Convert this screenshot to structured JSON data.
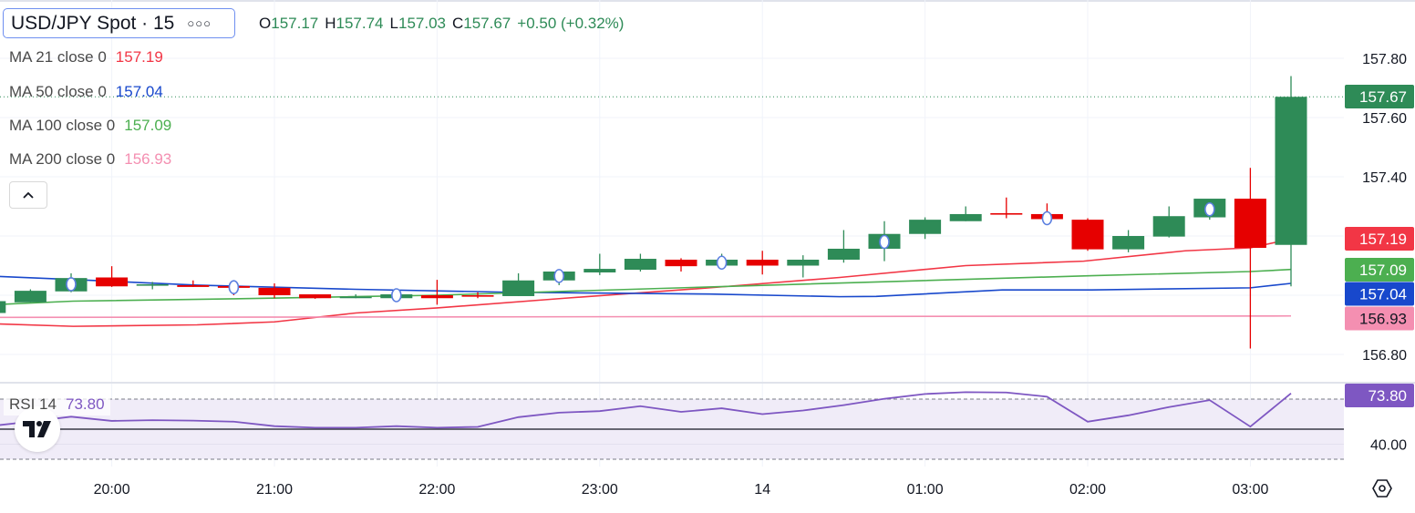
{
  "header": {
    "symbol": "USD/JPY Spot · 15",
    "more_icon": "ellipsis-icon",
    "ohlc": {
      "o_label": "O",
      "o": "157.17",
      "h_label": "H",
      "h": "157.74",
      "l_label": "L",
      "l": "157.03",
      "c_label": "C",
      "c": "157.67",
      "change": "+0.50 (+0.32%)"
    }
  },
  "indicators": [
    {
      "label": "MA 21 close 0",
      "value": "157.19",
      "color": "#f23645"
    },
    {
      "label": "MA 50 close 0",
      "value": "157.04",
      "color": "#1848cc"
    },
    {
      "label": "MA 100 close 0",
      "value": "157.09",
      "color": "#4caf50"
    },
    {
      "label": "MA 200 close 0",
      "value": "156.93",
      "color": "#f48fb1"
    }
  ],
  "collapse_icon": "chevron-up-icon",
  "rsi_legend": {
    "label": "RSI 14",
    "value": "73.80"
  },
  "colors": {
    "up": "#2e8b57",
    "down": "#e60000",
    "rsi": "#7e57c2",
    "marker": "#5b7fe0",
    "grid": "#f0f3fa"
  },
  "chart_data": {
    "type": "candlestick",
    "title": "USD/JPY Spot · 15",
    "interval_minutes": 15,
    "ylim": [
      156.8,
      157.8
    ],
    "y_ticks": [
      "157.80",
      "157.60",
      "157.40",
      "156.80"
    ],
    "x_ticks": [
      {
        "label": "20:00",
        "index": 3
      },
      {
        "label": "21:00",
        "index": 7
      },
      {
        "label": "22:00",
        "index": 11
      },
      {
        "label": "23:00",
        "index": 15
      },
      {
        "label": "14",
        "index": 19
      },
      {
        "label": "01:00",
        "index": 23
      },
      {
        "label": "02:00",
        "index": 27
      },
      {
        "label": "03:00",
        "index": 31
      }
    ],
    "candles_ohlc": [
      [
        156.94,
        156.99,
        156.93,
        156.98
      ],
      [
        156.976,
        157.02,
        156.976,
        157.015
      ],
      [
        157.013,
        157.074,
        157.01,
        157.058
      ],
      [
        157.06,
        157.098,
        157.028,
        157.03
      ],
      [
        157.032,
        157.045,
        157.02,
        157.037
      ],
      [
        157.034,
        157.05,
        157.028,
        157.028
      ],
      [
        157.031,
        157.045,
        157.0,
        157.025
      ],
      [
        157.025,
        157.04,
        156.99,
        157.0
      ],
      [
        157.003,
        157.003,
        156.988,
        156.99
      ],
      [
        156.99,
        157.003,
        156.99,
        156.995
      ],
      [
        156.99,
        157.005,
        156.99,
        157.003
      ],
      [
        157.0,
        157.052,
        156.968,
        156.99
      ],
      [
        157.0,
        157.01,
        156.99,
        156.995
      ],
      [
        156.997,
        157.074,
        156.997,
        157.05
      ],
      [
        157.05,
        157.08,
        157.034,
        157.08
      ],
      [
        157.077,
        157.14,
        157.068,
        157.089
      ],
      [
        157.086,
        157.14,
        157.08,
        157.123
      ],
      [
        157.12,
        157.125,
        157.08,
        157.098
      ],
      [
        157.1,
        157.14,
        157.095,
        157.12
      ],
      [
        157.12,
        157.15,
        157.07,
        157.1
      ],
      [
        157.1,
        157.135,
        157.06,
        157.12
      ],
      [
        157.12,
        157.22,
        157.11,
        157.157
      ],
      [
        157.157,
        157.25,
        157.115,
        157.207
      ],
      [
        157.207,
        157.263,
        157.19,
        157.255
      ],
      [
        157.25,
        157.3,
        157.25,
        157.274
      ],
      [
        157.277,
        157.33,
        157.26,
        157.275
      ],
      [
        157.274,
        157.31,
        157.257,
        157.257
      ],
      [
        157.255,
        157.26,
        157.15,
        157.155
      ],
      [
        157.155,
        157.22,
        157.145,
        157.2
      ],
      [
        157.198,
        157.3,
        157.195,
        157.267
      ],
      [
        157.263,
        157.31,
        157.255,
        157.326
      ],
      [
        157.326,
        157.43,
        156.82,
        157.16
      ],
      [
        157.17,
        157.74,
        157.03,
        157.67
      ]
    ],
    "markers": [
      [
        2,
        157.037
      ],
      [
        6,
        157.027
      ],
      [
        10,
        157.0
      ],
      [
        14,
        157.065
      ],
      [
        18,
        157.11
      ],
      [
        22,
        157.18
      ],
      [
        26,
        157.26
      ],
      [
        30,
        157.29
      ]
    ],
    "last_price": {
      "value": "157.67"
    },
    "moving_averages": [
      {
        "name": "MA 21",
        "color": "#f23645",
        "last": "157.19",
        "points": [
          [
            -0.25,
            156.905
          ],
          [
            2.05,
            156.895
          ],
          [
            5.1,
            156.9
          ],
          [
            7,
            156.91
          ],
          [
            9,
            156.94
          ],
          [
            11,
            156.957
          ],
          [
            14.15,
            156.99
          ],
          [
            17.7,
            157.025
          ],
          [
            20.9,
            157.06
          ],
          [
            24,
            157.1
          ],
          [
            26.9,
            157.115
          ],
          [
            29.4,
            157.15
          ],
          [
            31,
            157.16
          ],
          [
            32,
            157.19
          ]
        ]
      },
      {
        "name": "MA 50",
        "color": "#1848cc",
        "last": "157.04",
        "points": [
          [
            -0.25,
            157.066
          ],
          [
            2.05,
            157.053
          ],
          [
            5.1,
            157.034
          ],
          [
            9,
            157.02
          ],
          [
            12.8,
            157.01
          ],
          [
            17.7,
            157.004
          ],
          [
            20.9,
            156.995
          ],
          [
            21.8,
            156.996
          ],
          [
            24.9,
            157.018
          ],
          [
            27.1,
            157.018
          ],
          [
            31,
            157.025
          ],
          [
            32,
            157.04
          ]
        ]
      },
      {
        "name": "MA 100",
        "color": "#4caf50",
        "last": "157.09",
        "points": [
          [
            -0.25,
            156.966
          ],
          [
            2.05,
            156.98
          ],
          [
            6,
            156.988
          ],
          [
            11,
            157.0
          ],
          [
            17.7,
            157.028
          ],
          [
            22.6,
            157.048
          ],
          [
            27.1,
            157.066
          ],
          [
            31,
            157.08
          ],
          [
            32,
            157.087
          ]
        ]
      },
      {
        "name": "MA 200",
        "color": "#f48fb1",
        "last": "156.93",
        "points": [
          [
            -0.25,
            156.925
          ],
          [
            32,
            156.93
          ]
        ]
      }
    ],
    "rsi": {
      "name": "RSI 14",
      "last": "73.80",
      "upper": 70,
      "middle": 50,
      "lower": 30,
      "y_tick": "40.00",
      "values": [
        52,
        55,
        58.3,
        55.5,
        56,
        55.7,
        55,
        52,
        51,
        51,
        52,
        51,
        51.5,
        58,
        61,
        62,
        65.3,
        61.5,
        63.9,
        60,
        62.4,
        66,
        70.2,
        73.4,
        74.6,
        74.4,
        71.6,
        55,
        59.2,
        64.7,
        69.3,
        51.7,
        73.8
      ]
    }
  }
}
